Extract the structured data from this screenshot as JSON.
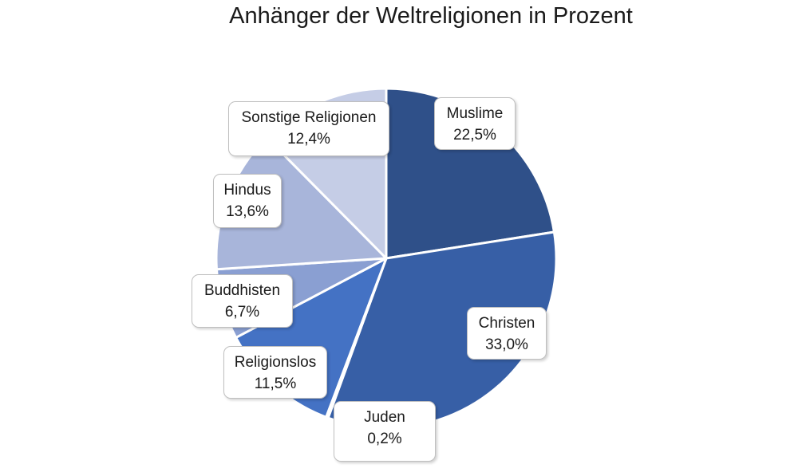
{
  "chart_data": {
    "type": "pie",
    "title": "Anhänger der Weltreligionen in Prozent",
    "slices": [
      {
        "label": "Muslime",
        "value": 22.5,
        "display": "22,5%",
        "color": "#2f5089"
      },
      {
        "label": "Christen",
        "value": 33.0,
        "display": "33,0%",
        "color": "#375fa6"
      },
      {
        "label": "Juden",
        "value": 0.2,
        "display": "0,2%",
        "color": "#3c67b5"
      },
      {
        "label": "Religionslos",
        "value": 11.5,
        "display": "11,5%",
        "color": "#4472c4"
      },
      {
        "label": "Buddhisten",
        "value": 6.7,
        "display": "6,7%",
        "color": "#8a9fd2"
      },
      {
        "label": "Hindus",
        "value": 13.6,
        "display": "13,6%",
        "color": "#a8b5da"
      },
      {
        "label": "Sonstige Religionen",
        "value": 12.4,
        "display": "12,4%",
        "color": "#c5cde6"
      }
    ],
    "start_angle": "top",
    "direction": "clockwise",
    "legend": "none"
  }
}
